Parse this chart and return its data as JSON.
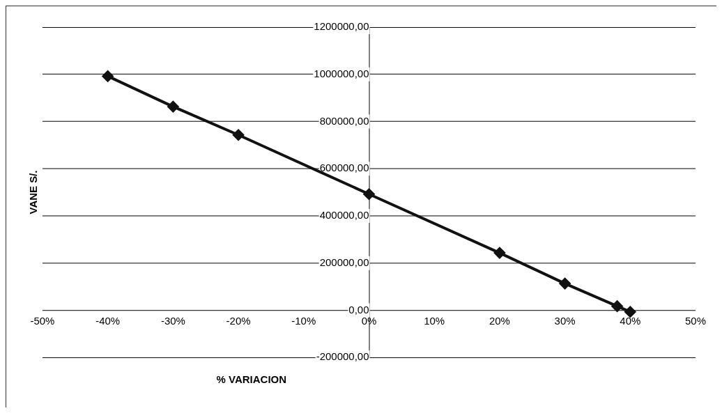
{
  "chart_data": {
    "type": "line",
    "xlabel": "% VARIACION",
    "ylabel": "VANE S/.",
    "x": [
      -40,
      -30,
      -20,
      0,
      20,
      30,
      38,
      40
    ],
    "series": [
      {
        "color": "#111111",
        "values": [
          992000,
          863000,
          743000,
          492000,
          243000,
          113000,
          17000,
          -7000
        ]
      }
    ],
    "xlim": [
      -50,
      50
    ],
    "xticks": [
      {
        "value": -50,
        "label": "-50%"
      },
      {
        "value": -40,
        "label": "-40%"
      },
      {
        "value": -30,
        "label": "-30%"
      },
      {
        "value": -20,
        "label": "-20%"
      },
      {
        "value": -10,
        "label": "-10%"
      },
      {
        "value": 0,
        "label": "0%"
      },
      {
        "value": 10,
        "label": "10%"
      },
      {
        "value": 20,
        "label": "20%"
      },
      {
        "value": 30,
        "label": "30%"
      },
      {
        "value": 40,
        "label": "40%"
      },
      {
        "value": 50,
        "label": "50%"
      }
    ],
    "ylim": [
      -200000,
      1200000
    ],
    "yticks": [
      {
        "value": -200000,
        "label": "-200000,00"
      },
      {
        "value": 0,
        "label": "0,00"
      },
      {
        "value": 200000,
        "label": "200000,00"
      },
      {
        "value": 400000,
        "label": "400000,00"
      },
      {
        "value": 600000,
        "label": "600000,00"
      },
      {
        "value": 800000,
        "label": "800000,00"
      },
      {
        "value": 1000000,
        "label": "1000000,00"
      },
      {
        "value": 1200000,
        "label": "1200000,00"
      }
    ],
    "grid": "y",
    "legend": false,
    "marker": "diamond",
    "line_style": "solid"
  }
}
